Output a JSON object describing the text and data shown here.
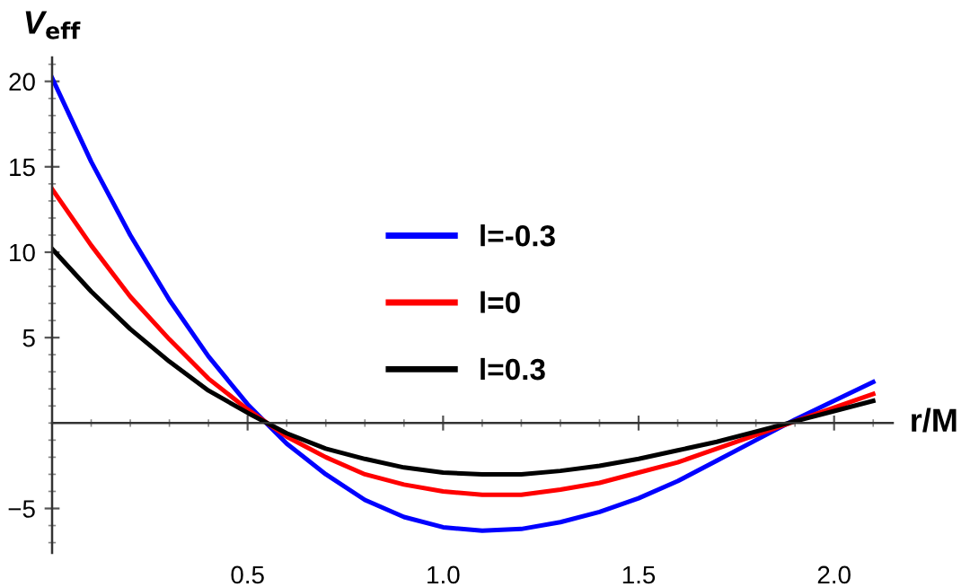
{
  "chart_data": {
    "type": "line",
    "xlabel": "r/M",
    "ylabel": "V$_{eff}$",
    "x": [
      0,
      0.1,
      0.2,
      0.3,
      0.4,
      0.5,
      0.6,
      0.7,
      0.8,
      0.9,
      1.0,
      1.1,
      1.2,
      1.3,
      1.4,
      1.5,
      1.6,
      1.7,
      1.8,
      1.9,
      2.0,
      2.1
    ],
    "series": [
      {
        "name": "l=-0.3",
        "color": "#0000ff",
        "values": [
          20.2,
          15.3,
          11.0,
          7.2,
          3.9,
          1.1,
          -1.2,
          -3.0,
          -4.5,
          -5.5,
          -6.1,
          -6.3,
          -6.2,
          -5.8,
          -5.2,
          -4.4,
          -3.4,
          -2.2,
          -1.0,
          0.2,
          1.3,
          2.4
        ]
      },
      {
        "name": "l=0",
        "color": "#ff0000",
        "values": [
          13.7,
          10.4,
          7.4,
          4.9,
          2.6,
          0.8,
          -0.8,
          -2.0,
          -3.0,
          -3.6,
          -4.0,
          -4.2,
          -4.2,
          -3.9,
          -3.5,
          -2.9,
          -2.3,
          -1.5,
          -0.7,
          0.1,
          0.9,
          1.7
        ]
      },
      {
        "name": "l=0.3",
        "color": "#000000",
        "values": [
          10.2,
          7.7,
          5.5,
          3.6,
          1.9,
          0.6,
          -0.6,
          -1.5,
          -2.1,
          -2.6,
          -2.9,
          -3.0,
          -3.0,
          -2.8,
          -2.5,
          -2.1,
          -1.6,
          -1.1,
          -0.5,
          0.1,
          0.7,
          1.3
        ]
      }
    ],
    "xlim": [
      0,
      2.15
    ],
    "ylim": [
      -7.6,
      21.4
    ],
    "xticks": [
      {
        "value": 0.5,
        "label": "0.5"
      },
      {
        "value": 1.0,
        "label": "1.0"
      },
      {
        "value": 1.5,
        "label": "1.5"
      },
      {
        "value": 2.0,
        "label": "2.0"
      }
    ],
    "yticks": [
      {
        "value": -5,
        "label": "−5"
      },
      5,
      10,
      15,
      20
    ],
    "legend": "center",
    "grid": false,
    "marker": "none",
    "line_style": "solid"
  }
}
